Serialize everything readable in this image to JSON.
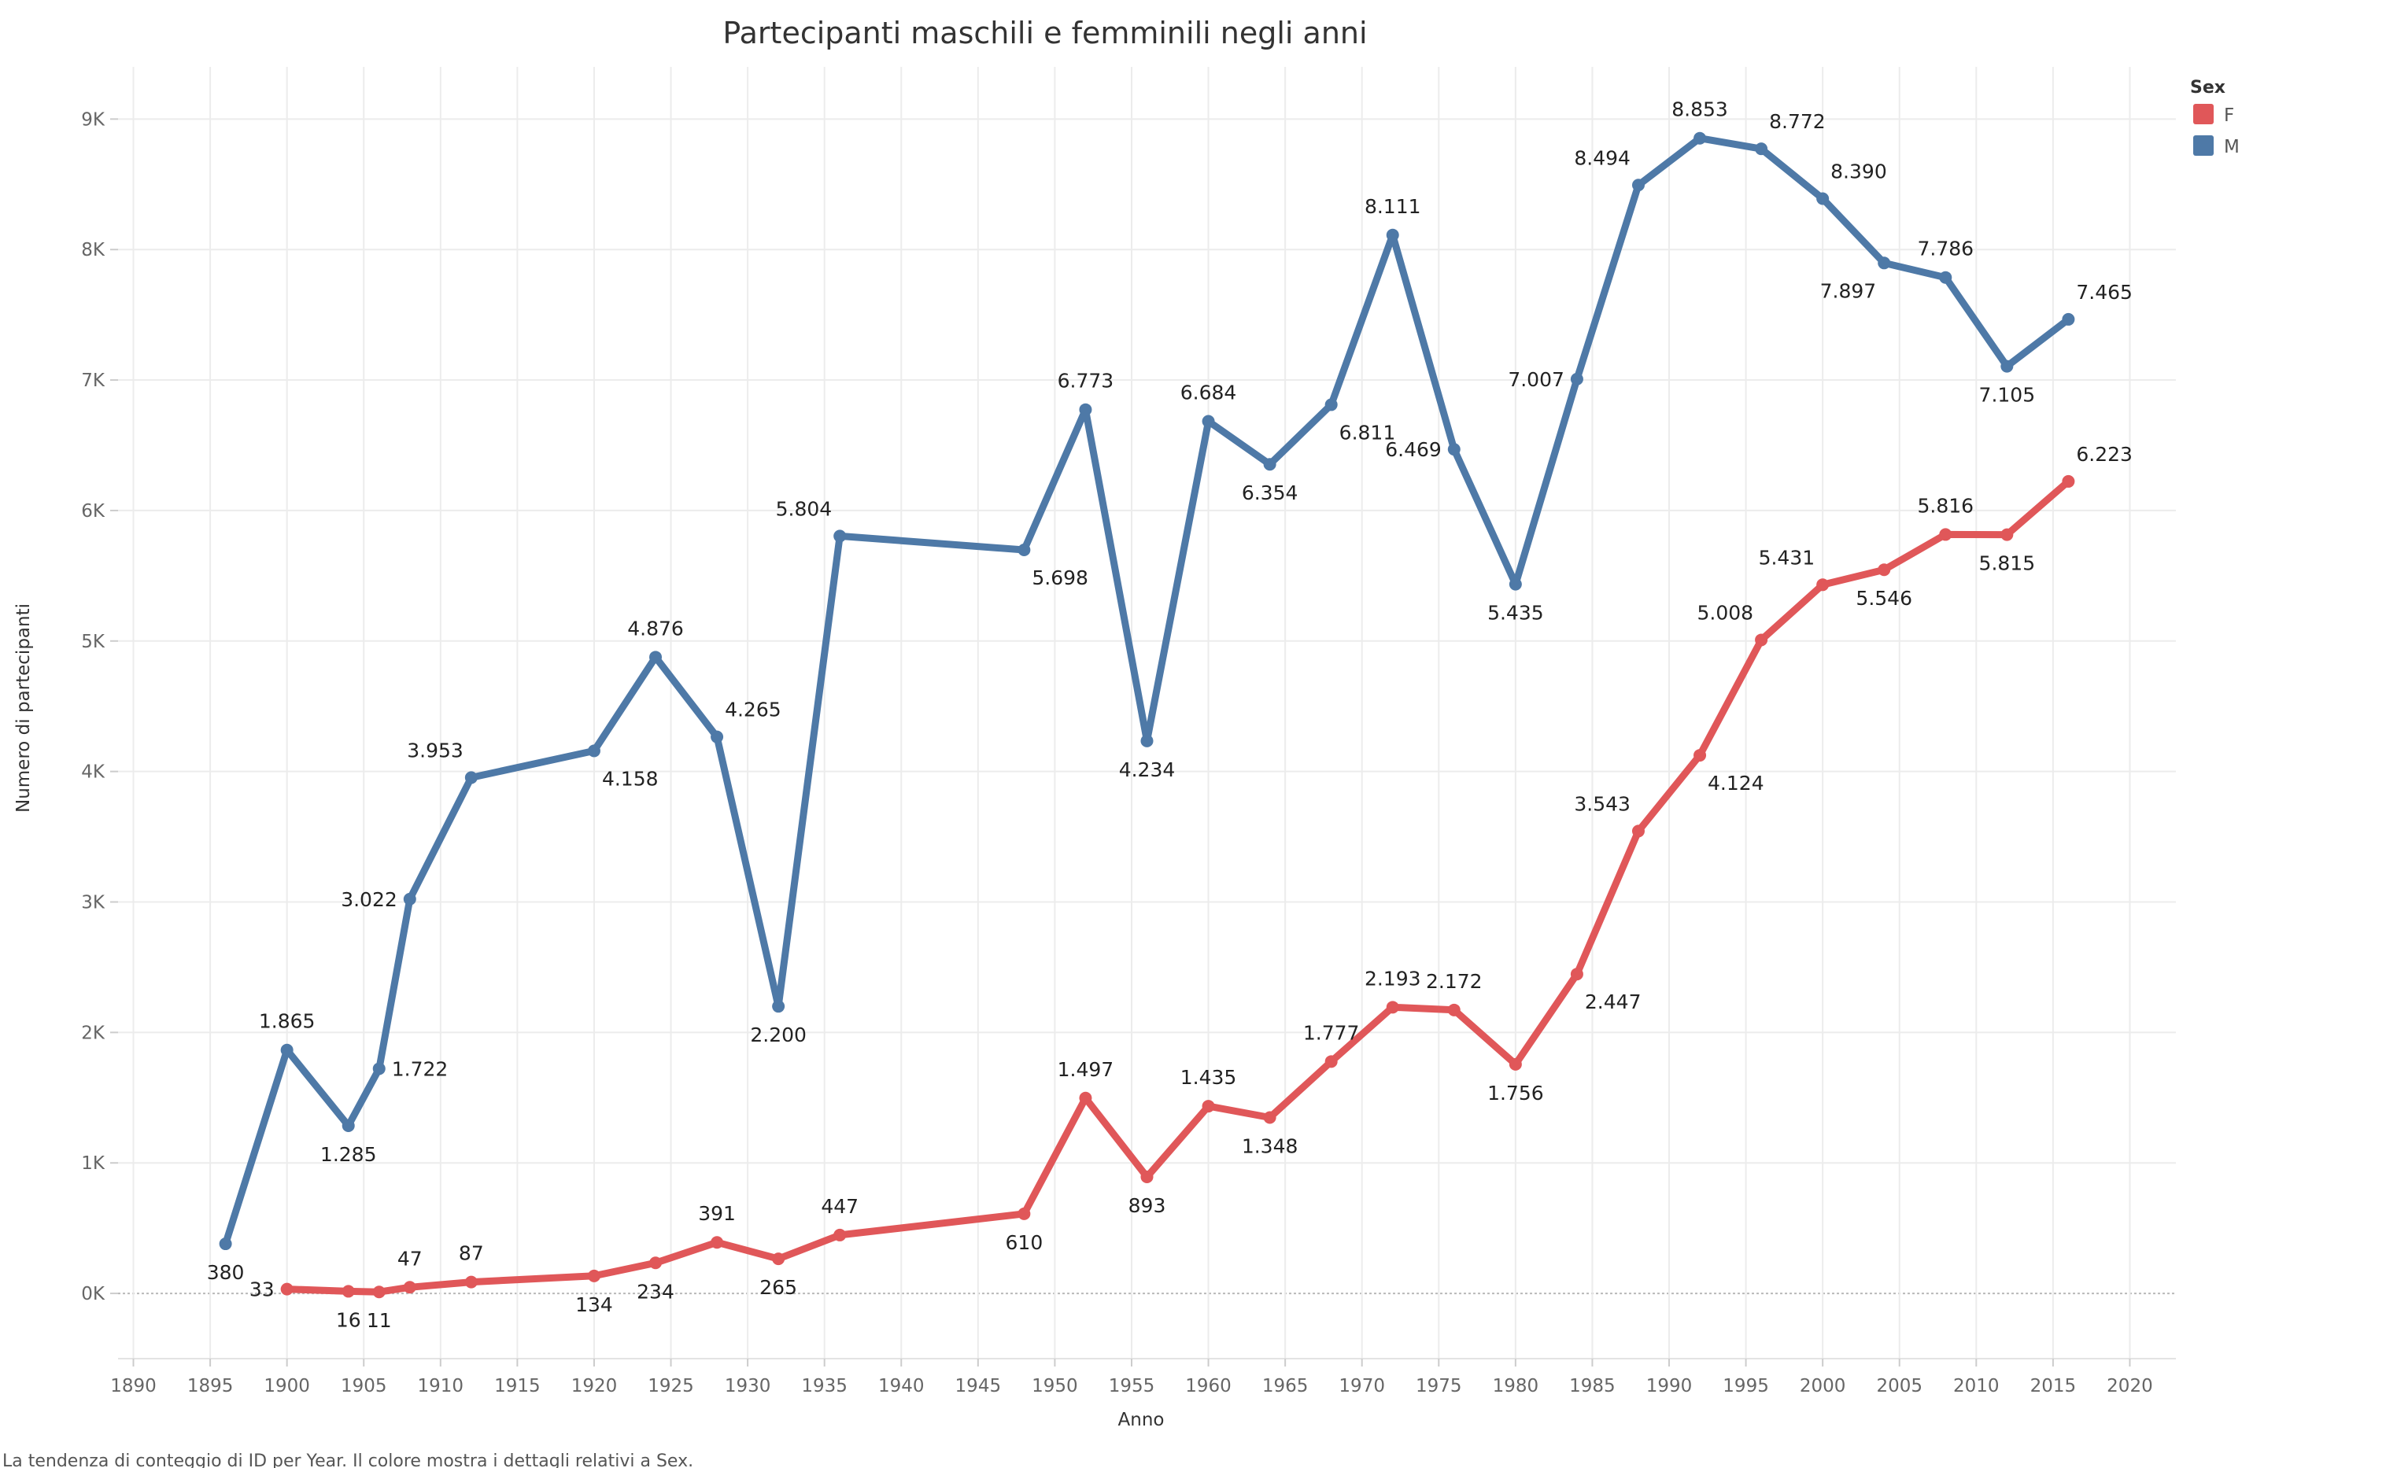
{
  "chart_data": {
    "type": "line",
    "title": "Partecipanti maschili e femminili negli anni",
    "xlabel": "Anno",
    "ylabel": "Numero di partecipanti",
    "xlim": [
      1889,
      2023
    ],
    "ylim": [
      -500,
      9400
    ],
    "x_ticks": [
      1890,
      1895,
      1900,
      1905,
      1910,
      1915,
      1920,
      1925,
      1930,
      1935,
      1940,
      1945,
      1950,
      1955,
      1960,
      1965,
      1970,
      1975,
      1980,
      1985,
      1990,
      1995,
      2000,
      2005,
      2010,
      2015,
      2020
    ],
    "y_ticks": [
      {
        "value": 0,
        "label": "0K"
      },
      {
        "value": 1000,
        "label": "1K"
      },
      {
        "value": 2000,
        "label": "2K"
      },
      {
        "value": 3000,
        "label": "3K"
      },
      {
        "value": 4000,
        "label": "4K"
      },
      {
        "value": 5000,
        "label": "5K"
      },
      {
        "value": 6000,
        "label": "6K"
      },
      {
        "value": 7000,
        "label": "7K"
      },
      {
        "value": 8000,
        "label": "8K"
      },
      {
        "value": 9000,
        "label": "9K"
      }
    ],
    "grid": true,
    "legend": {
      "title": "Sex",
      "position": "top-right"
    },
    "series": [
      {
        "name": "F",
        "color": "#e05759",
        "points": [
          {
            "x": 1900,
            "y": 33,
            "label": "33",
            "pos": "left"
          },
          {
            "x": 1904,
            "y": 16,
            "label": "16",
            "pos": "below"
          },
          {
            "x": 1906,
            "y": 11,
            "label": "11",
            "pos": "below"
          },
          {
            "x": 1908,
            "y": 47,
            "label": "47",
            "pos": "above"
          },
          {
            "x": 1912,
            "y": 87,
            "label": "87",
            "pos": "above"
          },
          {
            "x": 1920,
            "y": 134,
            "label": "134",
            "pos": "below"
          },
          {
            "x": 1924,
            "y": 234,
            "label": "234",
            "pos": "below"
          },
          {
            "x": 1928,
            "y": 391,
            "label": "391",
            "pos": "above"
          },
          {
            "x": 1932,
            "y": 265,
            "label": "265",
            "pos": "below"
          },
          {
            "x": 1936,
            "y": 447,
            "label": "447",
            "pos": "above"
          },
          {
            "x": 1948,
            "y": 610,
            "label": "610",
            "pos": "below"
          },
          {
            "x": 1952,
            "y": 1497,
            "label": "1.497",
            "pos": "above"
          },
          {
            "x": 1956,
            "y": 893,
            "label": "893",
            "pos": "below"
          },
          {
            "x": 1960,
            "y": 1435,
            "label": "1.435",
            "pos": "above"
          },
          {
            "x": 1964,
            "y": 1348,
            "label": "1.348",
            "pos": "below"
          },
          {
            "x": 1968,
            "y": 1777,
            "label": "1.777",
            "pos": "above"
          },
          {
            "x": 1972,
            "y": 2193,
            "label": "2.193",
            "pos": "above"
          },
          {
            "x": 1976,
            "y": 2172,
            "label": "2.172",
            "pos": "above"
          },
          {
            "x": 1980,
            "y": 1756,
            "label": "1.756",
            "pos": "below"
          },
          {
            "x": 1984,
            "y": 2447,
            "label": "2.447",
            "pos": "below-right"
          },
          {
            "x": 1988,
            "y": 3543,
            "label": "3.543",
            "pos": "above-left"
          },
          {
            "x": 1992,
            "y": 4124,
            "label": "4.124",
            "pos": "below-right"
          },
          {
            "x": 1996,
            "y": 5008,
            "label": "5.008",
            "pos": "above-left"
          },
          {
            "x": 2000,
            "y": 5431,
            "label": "5.431",
            "pos": "above-left"
          },
          {
            "x": 2004,
            "y": 5546,
            "label": "5.546",
            "pos": "below"
          },
          {
            "x": 2008,
            "y": 5816,
            "label": "5.816",
            "pos": "above"
          },
          {
            "x": 2012,
            "y": 5815,
            "label": "5.815",
            "pos": "below"
          },
          {
            "x": 2016,
            "y": 6223,
            "label": "6.223",
            "pos": "above-right"
          }
        ]
      },
      {
        "name": "M",
        "color": "#4e79a7",
        "points": [
          {
            "x": 1896,
            "y": 380,
            "label": "380",
            "pos": "below"
          },
          {
            "x": 1900,
            "y": 1865,
            "label": "1.865",
            "pos": "above"
          },
          {
            "x": 1904,
            "y": 1285,
            "label": "1.285",
            "pos": "below"
          },
          {
            "x": 1906,
            "y": 1722,
            "label": "1.722",
            "pos": "right"
          },
          {
            "x": 1908,
            "y": 3022,
            "label": "3.022",
            "pos": "left"
          },
          {
            "x": 1912,
            "y": 3953,
            "label": "3.953",
            "pos": "above-left"
          },
          {
            "x": 1920,
            "y": 4158,
            "label": "4.158",
            "pos": "below-right"
          },
          {
            "x": 1924,
            "y": 4876,
            "label": "4.876",
            "pos": "above"
          },
          {
            "x": 1928,
            "y": 4265,
            "label": "4.265",
            "pos": "above-right"
          },
          {
            "x": 1932,
            "y": 2200,
            "label": "2.200",
            "pos": "below"
          },
          {
            "x": 1936,
            "y": 5804,
            "label": "5.804",
            "pos": "above-left"
          },
          {
            "x": 1948,
            "y": 5698,
            "label": "5.698",
            "pos": "below-right"
          },
          {
            "x": 1952,
            "y": 6773,
            "label": "6.773",
            "pos": "above"
          },
          {
            "x": 1956,
            "y": 4234,
            "label": "4.234",
            "pos": "below"
          },
          {
            "x": 1960,
            "y": 6684,
            "label": "6.684",
            "pos": "above"
          },
          {
            "x": 1964,
            "y": 6354,
            "label": "6.354",
            "pos": "below"
          },
          {
            "x": 1968,
            "y": 6811,
            "label": "6.811",
            "pos": "below-right"
          },
          {
            "x": 1972,
            "y": 8111,
            "label": "8.111",
            "pos": "above"
          },
          {
            "x": 1976,
            "y": 6469,
            "label": "6.469",
            "pos": "left"
          },
          {
            "x": 1980,
            "y": 5435,
            "label": "5.435",
            "pos": "below"
          },
          {
            "x": 1984,
            "y": 7007,
            "label": "7.007",
            "pos": "left"
          },
          {
            "x": 1988,
            "y": 8494,
            "label": "8.494",
            "pos": "above-left"
          },
          {
            "x": 1992,
            "y": 8853,
            "label": "8.853",
            "pos": "above"
          },
          {
            "x": 1996,
            "y": 8772,
            "label": "8.772",
            "pos": "above-right"
          },
          {
            "x": 2000,
            "y": 8390,
            "label": "8.390",
            "pos": "above-right"
          },
          {
            "x": 2004,
            "y": 7897,
            "label": "7.897",
            "pos": "below-left"
          },
          {
            "x": 2008,
            "y": 7786,
            "label": "7.786",
            "pos": "above"
          },
          {
            "x": 2012,
            "y": 7105,
            "label": "7.105",
            "pos": "below"
          },
          {
            "x": 2016,
            "y": 7465,
            "label": "7.465",
            "pos": "above-right"
          }
        ]
      }
    ]
  },
  "caption": "La tendenza di conteggio di ID per Year. Il colore mostra i dettagli relativi a Sex."
}
